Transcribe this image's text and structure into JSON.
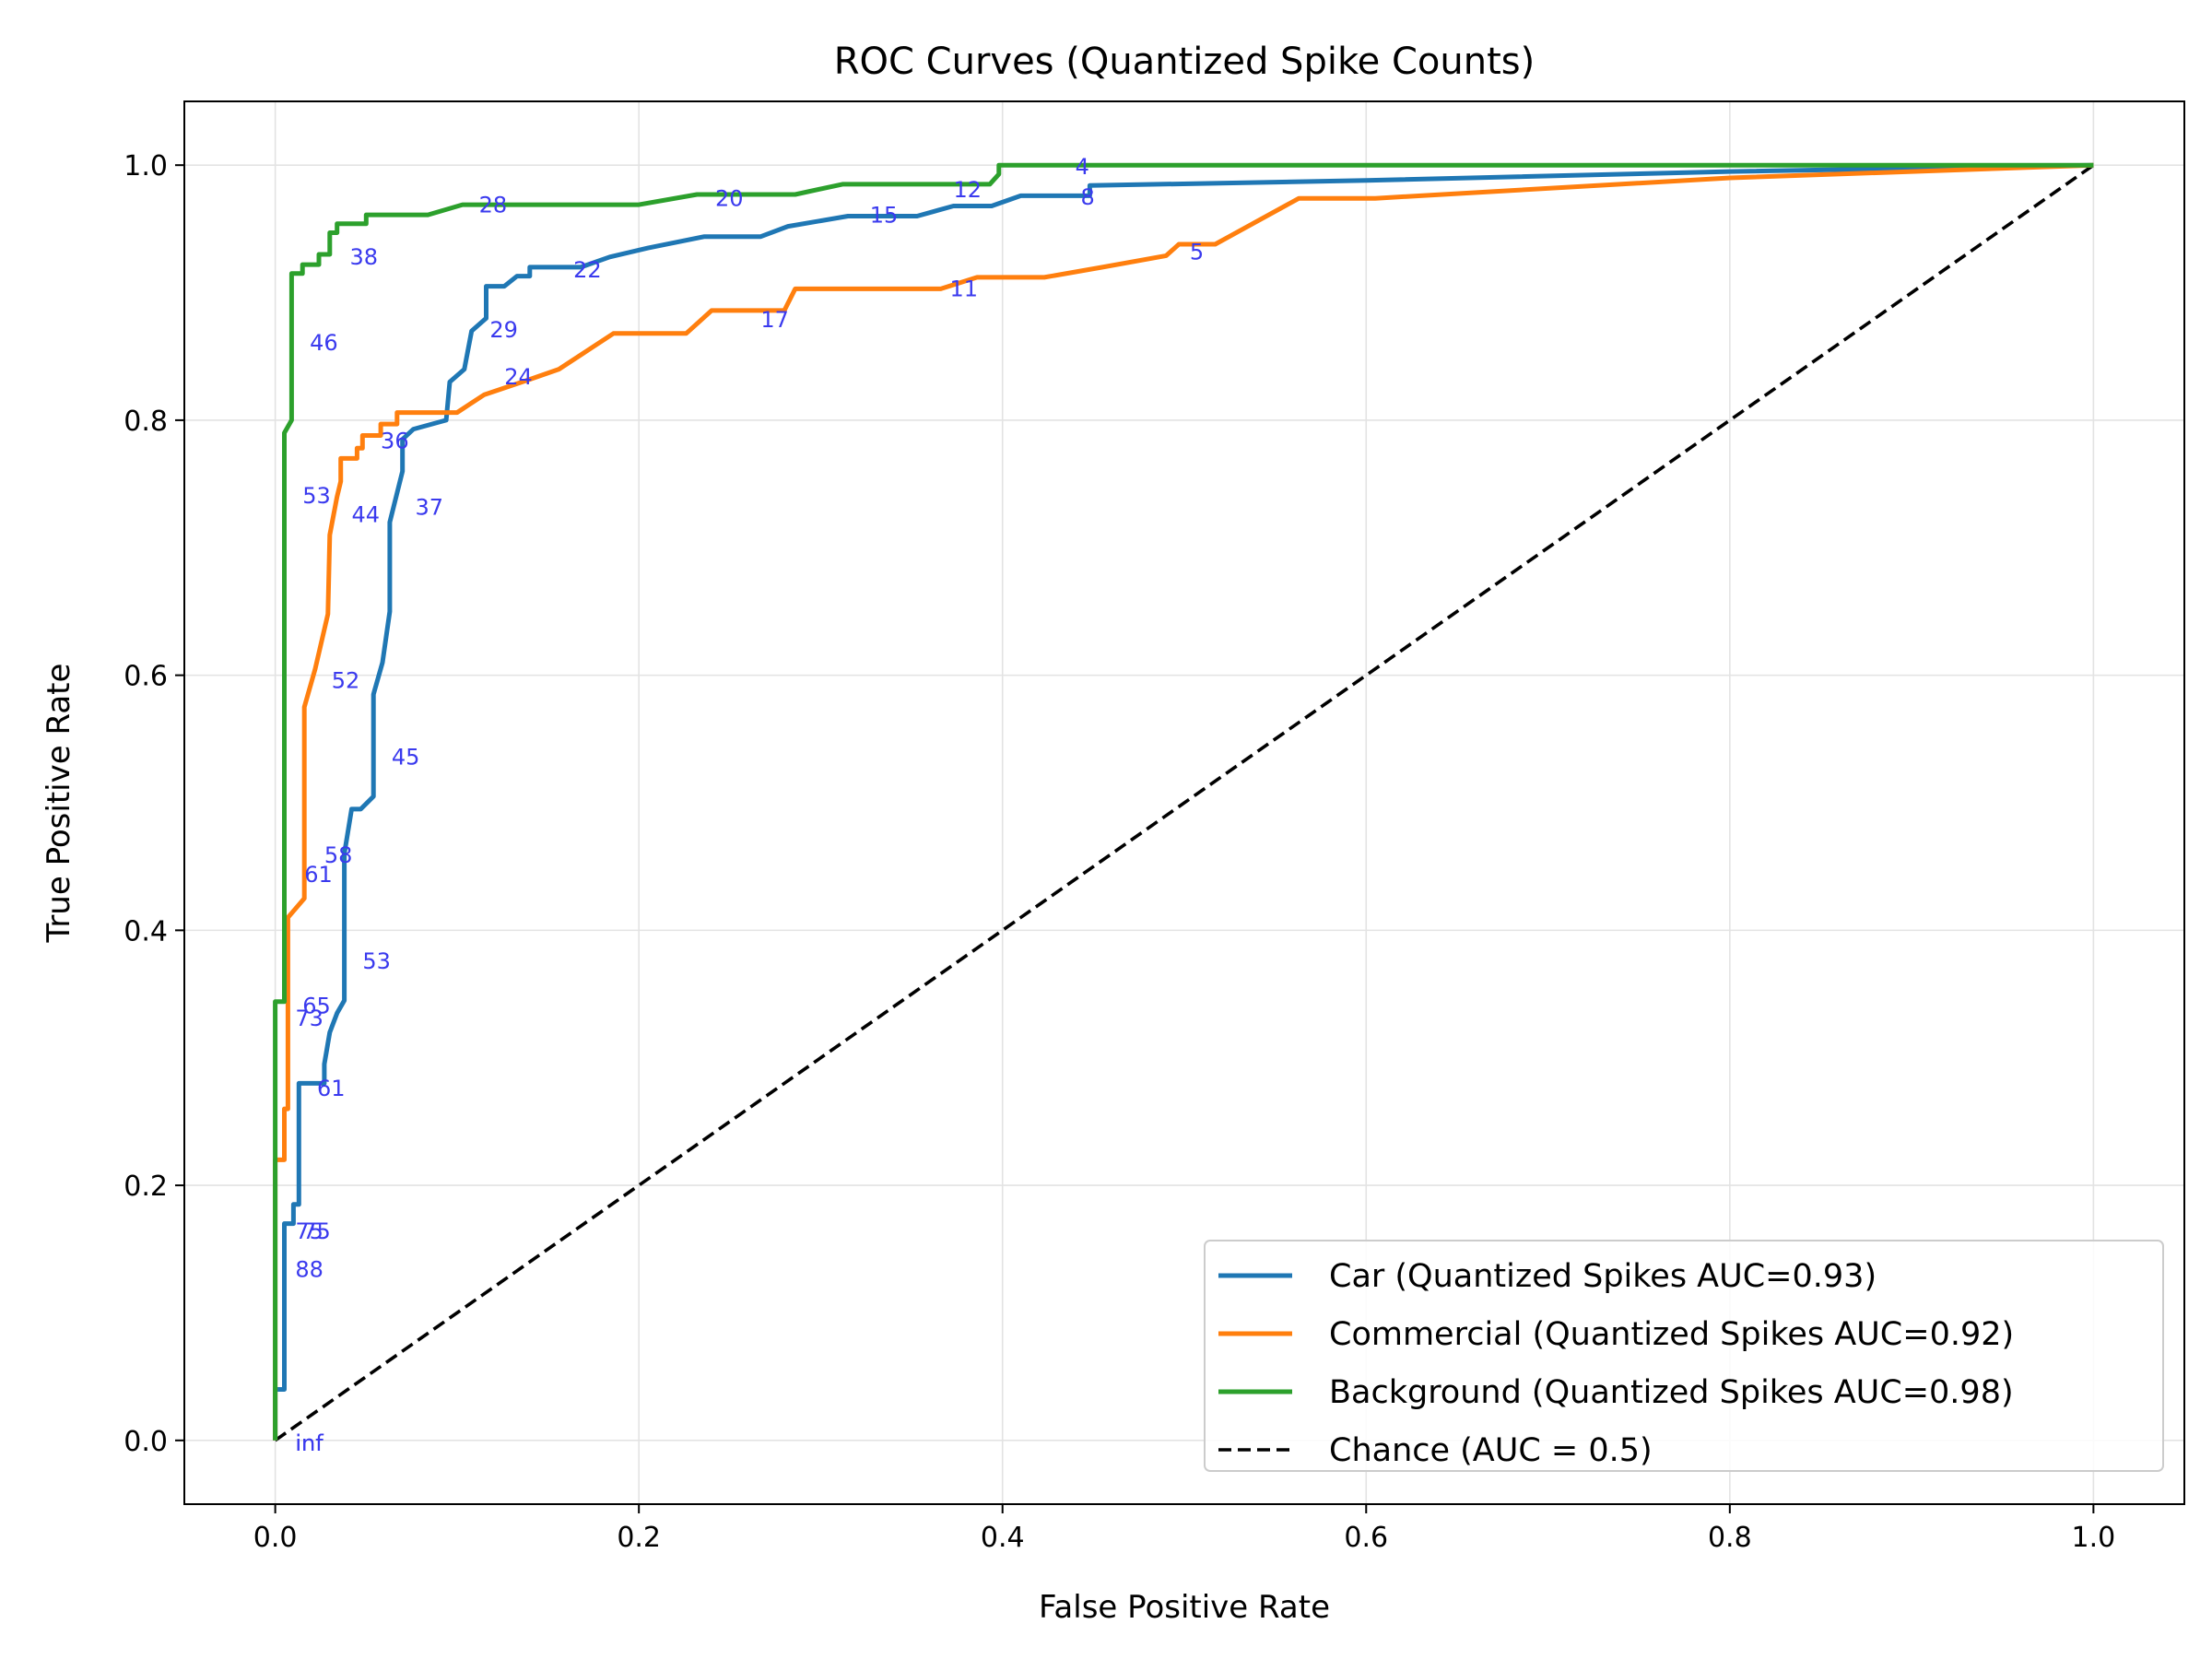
{
  "chart_data": {
    "type": "line",
    "title": "ROC Curves (Quantized Spike Counts)",
    "xlabel": "False Positive Rate",
    "ylabel": "True Positive Rate",
    "xlim": [
      -0.05,
      1.05
    ],
    "ylim": [
      -0.05,
      1.05
    ],
    "xticks": [
      0.0,
      0.2,
      0.4,
      0.6,
      0.8,
      1.0
    ],
    "yticks": [
      0.0,
      0.2,
      0.4,
      0.6,
      0.8,
      1.0
    ],
    "xtick_labels": [
      "0.0",
      "0.2",
      "0.4",
      "0.6",
      "0.8",
      "1.0"
    ],
    "ytick_labels": [
      "0.0",
      "0.2",
      "0.4",
      "0.6",
      "0.8",
      "1.0"
    ],
    "grid": true,
    "legend_position": "lower-right",
    "series": [
      {
        "name": "Car (Quantized Spikes AUC=0.93)",
        "color": "#1f77b4",
        "x": [
          0,
          0,
          0.005,
          0.005,
          0.01,
          0.01,
          0.013,
          0.013,
          0.027,
          0.027,
          0.03,
          0.034,
          0.038,
          0.038,
          0.042,
          0.047,
          0.054,
          0.054,
          0.059,
          0.063,
          0.063,
          0.07,
          0.07,
          0.076,
          0.094,
          0.096,
          0.104,
          0.108,
          0.116,
          0.116,
          0.126,
          0.133,
          0.14,
          0.14,
          0.146,
          0.168,
          0.184,
          0.205,
          0.236,
          0.267,
          0.282,
          0.315,
          0.353,
          0.373,
          0.394,
          0.41,
          0.448,
          0.448,
          0.6,
          0.8,
          1.0
        ],
        "y": [
          0,
          0.04,
          0.04,
          0.17,
          0.17,
          0.185,
          0.185,
          0.28,
          0.28,
          0.295,
          0.32,
          0.335,
          0.345,
          0.46,
          0.495,
          0.495,
          0.505,
          0.585,
          0.61,
          0.65,
          0.72,
          0.76,
          0.785,
          0.793,
          0.8,
          0.83,
          0.84,
          0.87,
          0.88,
          0.905,
          0.905,
          0.913,
          0.913,
          0.92,
          0.92,
          0.92,
          0.928,
          0.935,
          0.944,
          0.944,
          0.952,
          0.96,
          0.96,
          0.968,
          0.968,
          0.976,
          0.976,
          0.984,
          0.988,
          0.995,
          1.0
        ]
      },
      {
        "name": "Commercial (Quantized Spikes AUC=0.92)",
        "color": "#ff7f0e",
        "x": [
          0,
          0,
          0.005,
          0.005,
          0.007,
          0.007,
          0.016,
          0.016,
          0.022,
          0.029,
          0.03,
          0.034,
          0.036,
          0.036,
          0.045,
          0.045,
          0.048,
          0.048,
          0.058,
          0.058,
          0.067,
          0.067,
          0.1,
          0.115,
          0.14,
          0.156,
          0.186,
          0.226,
          0.24,
          0.28,
          0.286,
          0.366,
          0.386,
          0.423,
          0.455,
          0.49,
          0.497,
          0.517,
          0.563,
          0.605,
          0.8,
          1.0
        ],
        "y": [
          0,
          0.22,
          0.22,
          0.26,
          0.26,
          0.41,
          0.425,
          0.575,
          0.605,
          0.648,
          0.71,
          0.74,
          0.752,
          0.77,
          0.77,
          0.778,
          0.778,
          0.788,
          0.788,
          0.797,
          0.797,
          0.806,
          0.806,
          0.82,
          0.832,
          0.84,
          0.868,
          0.868,
          0.886,
          0.886,
          0.903,
          0.903,
          0.912,
          0.912,
          0.92,
          0.929,
          0.938,
          0.938,
          0.974,
          0.974,
          0.99,
          1.0
        ]
      },
      {
        "name": "Background (Quantized Spikes AUC=0.98)",
        "color": "#2ca02c",
        "x": [
          0,
          0,
          0.005,
          0.005,
          0.009,
          0.009,
          0.015,
          0.015,
          0.024,
          0.024,
          0.03,
          0.03,
          0.034,
          0.034,
          0.05,
          0.05,
          0.084,
          0.103,
          0.2,
          0.232,
          0.286,
          0.312,
          0.393,
          0.398,
          0.398,
          1.0
        ],
        "y": [
          0,
          0.344,
          0.344,
          0.79,
          0.8,
          0.915,
          0.915,
          0.922,
          0.922,
          0.93,
          0.93,
          0.947,
          0.947,
          0.954,
          0.954,
          0.961,
          0.961,
          0.969,
          0.969,
          0.977,
          0.977,
          0.985,
          0.985,
          0.993,
          1.0,
          1.0
        ]
      },
      {
        "name": "Chance (AUC = 0.5)",
        "color": "#000000",
        "dashed": true,
        "x": [
          0,
          1
        ],
        "y": [
          0,
          1
        ]
      }
    ],
    "annotations": [
      {
        "text": "inf",
        "x": 0.011,
        "y": -0.008
      },
      {
        "text": "inf",
        "x": 0.011,
        "y": -0.008
      },
      {
        "text": "75",
        "x": 0.011,
        "y": 0.158
      },
      {
        "text": "75",
        "x": 0.015,
        "y": 0.158
      },
      {
        "text": "88",
        "x": 0.011,
        "y": 0.128
      },
      {
        "text": "61",
        "x": 0.023,
        "y": 0.27
      },
      {
        "text": "73",
        "x": 0.011,
        "y": 0.325
      },
      {
        "text": "65",
        "x": 0.015,
        "y": 0.335
      },
      {
        "text": "53",
        "x": 0.048,
        "y": 0.37
      },
      {
        "text": "61",
        "x": 0.016,
        "y": 0.438
      },
      {
        "text": "58",
        "x": 0.027,
        "y": 0.453
      },
      {
        "text": "45",
        "x": 0.064,
        "y": 0.53
      },
      {
        "text": "52",
        "x": 0.031,
        "y": 0.59
      },
      {
        "text": "53",
        "x": 0.015,
        "y": 0.735
      },
      {
        "text": "44",
        "x": 0.042,
        "y": 0.72
      },
      {
        "text": "37",
        "x": 0.077,
        "y": 0.726
      },
      {
        "text": "36",
        "x": 0.058,
        "y": 0.778
      },
      {
        "text": "24",
        "x": 0.126,
        "y": 0.828
      },
      {
        "text": "29",
        "x": 0.118,
        "y": 0.865
      },
      {
        "text": "46",
        "x": 0.019,
        "y": 0.855
      },
      {
        "text": "38",
        "x": 0.041,
        "y": 0.922
      },
      {
        "text": "22",
        "x": 0.164,
        "y": 0.912
      },
      {
        "text": "28",
        "x": 0.112,
        "y": 0.963
      },
      {
        "text": "17",
        "x": 0.267,
        "y": 0.873
      },
      {
        "text": "11",
        "x": 0.371,
        "y": 0.897
      },
      {
        "text": "5",
        "x": 0.503,
        "y": 0.926
      },
      {
        "text": "15",
        "x": 0.327,
        "y": 0.955
      },
      {
        "text": "20",
        "x": 0.242,
        "y": 0.968
      },
      {
        "text": "12",
        "x": 0.373,
        "y": 0.975
      },
      {
        "text": "4",
        "x": 0.44,
        "y": 0.993
      },
      {
        "text": "8",
        "x": 0.443,
        "y": 0.969
      }
    ]
  }
}
